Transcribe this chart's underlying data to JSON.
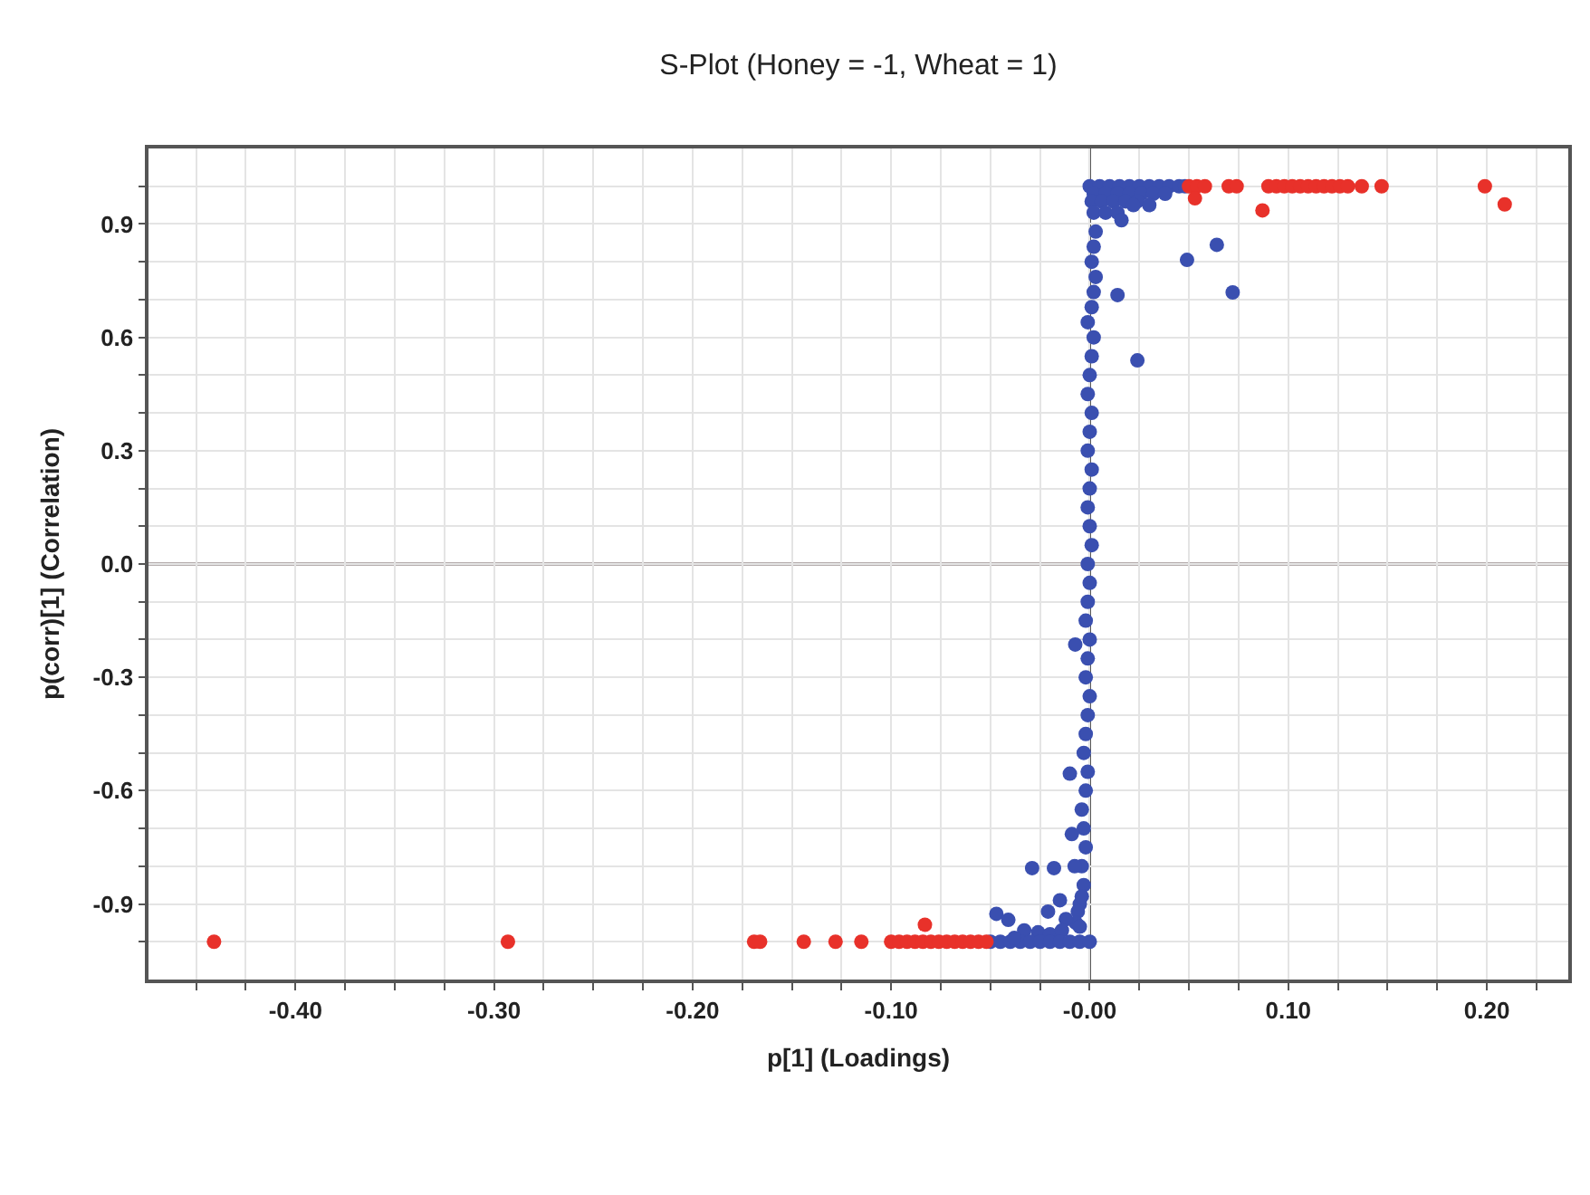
{
  "chart_data": {
    "type": "scatter",
    "title": "S-Plot (Honey = -1, Wheat = 1)",
    "xlabel": "p[1] (Loadings)",
    "ylabel": "p(corr)[1] (Correlation)",
    "xlim": [
      -0.474,
      0.241
    ],
    "ylim": [
      -1.1,
      1.1
    ],
    "xticks": [
      {
        "value": -0.45,
        "label": null
      },
      {
        "value": -0.425,
        "label": null
      },
      {
        "value": -0.4,
        "label": "-0.40"
      },
      {
        "value": -0.375,
        "label": null
      },
      {
        "value": -0.35,
        "label": null
      },
      {
        "value": -0.325,
        "label": null
      },
      {
        "value": -0.3,
        "label": "-0.30"
      },
      {
        "value": -0.275,
        "label": null
      },
      {
        "value": -0.25,
        "label": null
      },
      {
        "value": -0.225,
        "label": null
      },
      {
        "value": -0.2,
        "label": "-0.20"
      },
      {
        "value": -0.175,
        "label": null
      },
      {
        "value": -0.15,
        "label": null
      },
      {
        "value": -0.125,
        "label": null
      },
      {
        "value": -0.1,
        "label": "-0.10"
      },
      {
        "value": -0.075,
        "label": null
      },
      {
        "value": -0.05,
        "label": null
      },
      {
        "value": -0.025,
        "label": null
      },
      {
        "value": 0,
        "label": "-0.00"
      },
      {
        "value": 0.025,
        "label": null
      },
      {
        "value": 0.05,
        "label": null
      },
      {
        "value": 0.075,
        "label": null
      },
      {
        "value": 0.1,
        "label": "0.10"
      },
      {
        "value": 0.125,
        "label": null
      },
      {
        "value": 0.15,
        "label": null
      },
      {
        "value": 0.175,
        "label": null
      },
      {
        "value": 0.2,
        "label": "0.20"
      },
      {
        "value": 0.225,
        "label": null
      }
    ],
    "yticks": [
      {
        "value": -1.0,
        "label": null
      },
      {
        "value": -0.9,
        "label": "-0.9"
      },
      {
        "value": -0.8,
        "label": null
      },
      {
        "value": -0.7,
        "label": null
      },
      {
        "value": -0.6,
        "label": "-0.6"
      },
      {
        "value": -0.5,
        "label": null
      },
      {
        "value": -0.4,
        "label": null
      },
      {
        "value": -0.3,
        "label": "-0.3"
      },
      {
        "value": -0.2,
        "label": null
      },
      {
        "value": -0.1,
        "label": null
      },
      {
        "value": 0,
        "label": "0.0"
      },
      {
        "value": 0.1,
        "label": null
      },
      {
        "value": 0.2,
        "label": null
      },
      {
        "value": 0.3,
        "label": "0.3"
      },
      {
        "value": 0.4,
        "label": null
      },
      {
        "value": 0.5,
        "label": null
      },
      {
        "value": 0.6,
        "label": "0.6"
      },
      {
        "value": 0.7,
        "label": null
      },
      {
        "value": 0.8,
        "label": null
      },
      {
        "value": 0.9,
        "label": "0.9"
      },
      {
        "value": 1.0,
        "label": null
      }
    ],
    "grid": true,
    "marker": "circle",
    "ref_lines": [
      {
        "axis": "x",
        "value": 0,
        "color": "#555555"
      },
      {
        "axis": "y",
        "value": 0,
        "color": "#6b5a5a"
      }
    ],
    "series": [
      {
        "color": "#3a4fb0",
        "x": [
          0.0,
          0.005,
          0.01,
          0.015,
          0.02,
          0.025,
          0.03,
          0.035,
          0.04,
          0.045,
          0.048,
          0.002,
          0.008,
          0.014,
          0.02,
          0.026,
          0.032,
          0.038,
          0.001,
          0.006,
          0.012,
          0.018,
          0.024,
          0.002,
          0.008,
          0.014,
          0.022,
          0.03,
          0.016,
          0.049,
          0.064,
          0.072,
          0.014,
          0.024,
          0.003,
          0.002,
          0.001,
          0.003,
          0.002,
          0.001,
          -0.001,
          0.002,
          0.001,
          0.0,
          -0.001,
          0.001,
          0.0,
          -0.001,
          0.001,
          0.0,
          -0.001,
          0.0,
          0.001,
          -0.001,
          0.0,
          -0.001,
          -0.002,
          0.0,
          -0.001,
          -0.002,
          0.0,
          -0.001,
          -0.002,
          -0.003,
          -0.001,
          -0.002,
          -0.0073,
          -0.004,
          -0.003,
          -0.002,
          -0.004,
          -0.01,
          -0.009,
          -0.003,
          -0.005,
          -0.004,
          -0.006,
          -0.007,
          -0.029,
          -0.018,
          -0.0076,
          -0.005,
          -0.015,
          -0.021,
          -0.012,
          -0.047,
          -0.041,
          -0.033,
          -0.026,
          -0.02,
          -0.014,
          -0.05,
          -0.045,
          -0.04,
          -0.035,
          -0.03,
          -0.025,
          -0.02,
          -0.015,
          -0.01,
          -0.005,
          0.0,
          -0.038
        ],
        "values": [
          1.0,
          1.0,
          1.0,
          1.0,
          1.0,
          1.0,
          1.0,
          1.0,
          1.0,
          1.0,
          1.0,
          0.98,
          0.98,
          0.98,
          0.98,
          0.98,
          0.98,
          0.98,
          0.96,
          0.96,
          0.96,
          0.96,
          0.96,
          0.93,
          0.93,
          0.93,
          0.95,
          0.95,
          0.91,
          0.805,
          0.845,
          0.719,
          0.712,
          0.539,
          0.88,
          0.84,
          0.8,
          0.76,
          0.72,
          0.68,
          0.64,
          0.6,
          0.55,
          0.5,
          0.45,
          0.4,
          0.35,
          0.3,
          0.25,
          0.2,
          0.15,
          0.1,
          0.05,
          0.0,
          -0.05,
          -0.1,
          -0.15,
          -0.2,
          -0.25,
          -0.3,
          -0.35,
          -0.4,
          -0.45,
          -0.5,
          -0.55,
          -0.6,
          -0.213,
          -0.65,
          -0.7,
          -0.75,
          -0.8,
          -0.555,
          -0.715,
          -0.85,
          -0.9,
          -0.88,
          -0.92,
          -0.95,
          -0.805,
          -0.805,
          -0.8,
          -0.96,
          -0.89,
          -0.92,
          -0.94,
          -0.926,
          -0.942,
          -0.97,
          -0.975,
          -0.98,
          -0.97,
          -1.0,
          -1.0,
          -1.0,
          -1.0,
          -1.0,
          -1.0,
          -1.0,
          -1.0,
          -1.0,
          -1.0,
          -1.0,
          -0.99
        ]
      },
      {
        "color": "#e8312a",
        "x": [
          -0.441,
          -0.293,
          -0.169,
          -0.166,
          -0.144,
          -0.128,
          -0.115,
          -0.1,
          -0.096,
          -0.092,
          -0.088,
          -0.084,
          -0.08,
          -0.076,
          -0.072,
          -0.068,
          -0.064,
          -0.06,
          -0.056,
          -0.052,
          -0.083,
          0.05,
          0.054,
          0.058,
          0.07,
          0.074,
          0.09,
          0.094,
          0.098,
          0.102,
          0.106,
          0.11,
          0.114,
          0.118,
          0.122,
          0.126,
          0.13,
          0.137,
          0.147,
          0.199,
          0.053,
          0.087,
          0.209
        ],
        "values": [
          -1.0,
          -1.0,
          -1.0,
          -1.0,
          -1.0,
          -1.0,
          -1.0,
          -1.0,
          -1.0,
          -1.0,
          -1.0,
          -1.0,
          -1.0,
          -1.0,
          -1.0,
          -1.0,
          -1.0,
          -1.0,
          -1.0,
          -1.0,
          -0.955,
          1.0,
          1.0,
          1.0,
          1.0,
          1.0,
          1.0,
          1.0,
          1.0,
          1.0,
          1.0,
          1.0,
          1.0,
          1.0,
          1.0,
          1.0,
          1.0,
          1.0,
          1.0,
          1.0,
          0.968,
          0.936,
          0.952
        ]
      }
    ]
  }
}
